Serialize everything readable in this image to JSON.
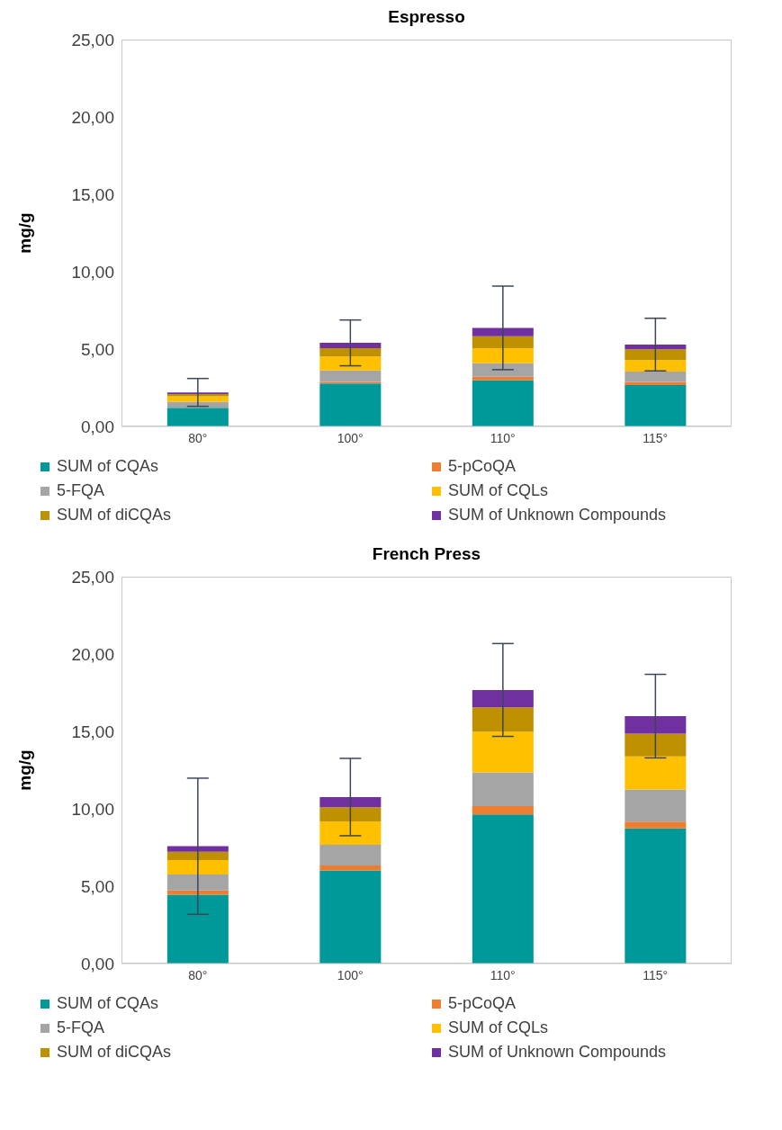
{
  "chart_data": [
    {
      "type": "bar",
      "title": "Espresso",
      "ylabel": "mg/g",
      "stacked": true,
      "legend": "bottom",
      "categories": [
        "80°",
        "100°",
        "110°",
        "115°"
      ],
      "ylim": [
        0,
        25
      ],
      "yticks": [
        {
          "value": 0,
          "label": "0,00"
        },
        {
          "value": 5,
          "label": "5,00"
        },
        {
          "value": 10,
          "label": "10,00"
        },
        {
          "value": 15,
          "label": "15,00"
        },
        {
          "value": 20,
          "label": "20,00"
        },
        {
          "value": 25,
          "label": "25,00"
        }
      ],
      "series": [
        {
          "name": "SUM of CQAs",
          "color": "#009999",
          "values": [
            1.2,
            2.77,
            2.98,
            2.67
          ]
        },
        {
          "name": "5-pCoQA",
          "color": "#ed7d31",
          "values": [
            null,
            0.11,
            0.23,
            0.21
          ]
        },
        {
          "name": "5-FQA",
          "color": "#a5a5a5",
          "values": [
            0.4,
            0.74,
            0.87,
            0.67
          ]
        },
        {
          "name": "SUM of CQLs",
          "color": "#ffc000",
          "values": [
            0.35,
            0.9,
            0.98,
            0.74
          ]
        },
        {
          "name": "SUM of diCQAs",
          "color": "#bf9000",
          "values": [
            0.15,
            0.54,
            0.77,
            0.69
          ]
        },
        {
          "name": "SUM of Unknown Compounds",
          "color": "#7030a0",
          "values": [
            0.1,
            0.34,
            0.54,
            0.31
          ],
          "errors": [
            0.9,
            1.48,
            2.7,
            1.7
          ]
        }
      ]
    },
    {
      "type": "bar",
      "title": "French Press",
      "ylabel": "mg/g",
      "stacked": true,
      "legend": "bottom",
      "categories": [
        "80°",
        "100°",
        "110°",
        "115°"
      ],
      "ylim": [
        0,
        25
      ],
      "yticks": [
        {
          "value": 0,
          "label": "0,00"
        },
        {
          "value": 5,
          "label": "5,00"
        },
        {
          "value": 10,
          "label": "10,00"
        },
        {
          "value": 15,
          "label": "15,00"
        },
        {
          "value": 20,
          "label": "20,00"
        },
        {
          "value": 25,
          "label": "25,00"
        }
      ],
      "series": [
        {
          "name": "SUM of CQAs",
          "color": "#009999",
          "values": [
            4.45,
            6.02,
            9.63,
            8.73
          ]
        },
        {
          "name": "5-pCoQA",
          "color": "#ed7d31",
          "values": [
            0.27,
            0.31,
            0.55,
            0.44
          ]
        },
        {
          "name": "5-FQA",
          "color": "#a5a5a5",
          "values": [
            1.03,
            1.35,
            2.17,
            2.08
          ]
        },
        {
          "name": "SUM of CQLs",
          "color": "#ffc000",
          "values": [
            0.93,
            1.51,
            2.63,
            2.14
          ]
        },
        {
          "name": "SUM of diCQAs",
          "color": "#bf9000",
          "values": [
            0.55,
            0.91,
            1.58,
            1.46
          ]
        },
        {
          "name": "SUM of Unknown Compounds",
          "color": "#7030a0",
          "values": [
            0.35,
            0.66,
            1.12,
            1.14
          ],
          "errors": [
            4.4,
            2.5,
            3.0,
            2.7
          ]
        }
      ]
    }
  ]
}
